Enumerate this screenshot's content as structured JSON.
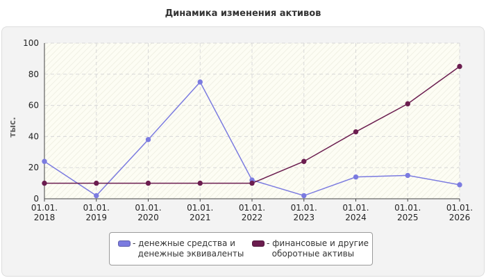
{
  "chart_data": {
    "type": "line",
    "title": "Динамика изменения активов",
    "ylabel": "тыс.",
    "xlabel": "",
    "categories": [
      [
        "01.01.",
        "2018"
      ],
      [
        "01.01.",
        "2019"
      ],
      [
        "01.01.",
        "2020"
      ],
      [
        "01.01.",
        "2021"
      ],
      [
        "01.01.",
        "2022"
      ],
      [
        "01.01.",
        "2023"
      ],
      [
        "01.01.",
        "2024"
      ],
      [
        "01.01.",
        "2025"
      ],
      [
        "01.01.",
        "2026"
      ]
    ],
    "yticks": [
      0,
      20,
      40,
      60,
      80,
      100
    ],
    "ylim": [
      0,
      100
    ],
    "grid": true,
    "legend_position": "bottom",
    "series": [
      {
        "name_lines": [
          "денежные средства и",
          "денежные эквиваленты"
        ],
        "color": "#7b7be0",
        "values": [
          24,
          2,
          38,
          75,
          12,
          2,
          14,
          15,
          9
        ]
      },
      {
        "name_lines": [
          "финансовые и другие",
          "оборотные активы"
        ],
        "color": "#6b1d4f",
        "values": [
          10,
          10,
          10,
          10,
          10,
          24,
          43,
          61,
          85
        ]
      }
    ]
  }
}
